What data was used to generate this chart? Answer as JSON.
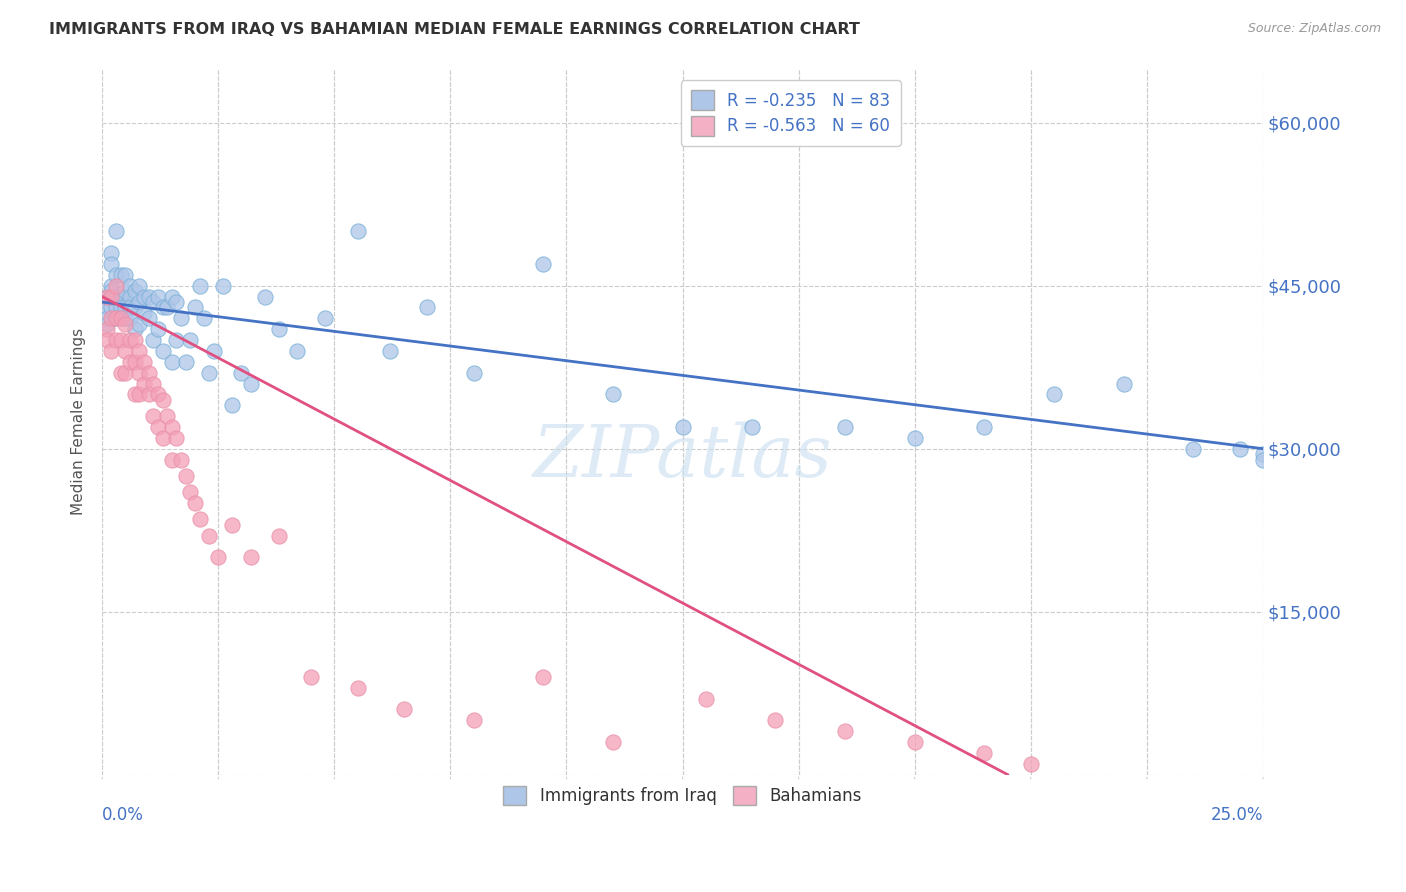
{
  "title": "IMMIGRANTS FROM IRAQ VS BAHAMIAN MEDIAN FEMALE EARNINGS CORRELATION CHART",
  "source": "Source: ZipAtlas.com",
  "ylabel": "Median Female Earnings",
  "y_ticks": [
    0,
    15000,
    30000,
    45000,
    60000
  ],
  "y_tick_labels": [
    "",
    "$15,000",
    "$30,000",
    "$45,000",
    "$60,000"
  ],
  "x_min": 0.0,
  "x_max": 0.25,
  "y_min": 0,
  "y_max": 65000,
  "legend_entries": [
    {
      "label": "Immigrants from Iraq",
      "color": "#aec6e8",
      "R": "-0.235",
      "N": "83"
    },
    {
      "label": "Bahamians",
      "color": "#f4b0c4",
      "R": "-0.563",
      "N": "60"
    }
  ],
  "blue_scatter_x": [
    0.001,
    0.001,
    0.001,
    0.001,
    0.002,
    0.002,
    0.002,
    0.002,
    0.002,
    0.003,
    0.003,
    0.003,
    0.003,
    0.003,
    0.004,
    0.004,
    0.004,
    0.004,
    0.005,
    0.005,
    0.005,
    0.005,
    0.006,
    0.006,
    0.006,
    0.006,
    0.007,
    0.007,
    0.007,
    0.008,
    0.008,
    0.008,
    0.009,
    0.009,
    0.01,
    0.01,
    0.011,
    0.011,
    0.012,
    0.012,
    0.013,
    0.013,
    0.014,
    0.015,
    0.015,
    0.016,
    0.016,
    0.017,
    0.018,
    0.019,
    0.02,
    0.021,
    0.022,
    0.023,
    0.024,
    0.026,
    0.028,
    0.03,
    0.032,
    0.035,
    0.038,
    0.042,
    0.048,
    0.055,
    0.062,
    0.07,
    0.08,
    0.095,
    0.11,
    0.125,
    0.14,
    0.16,
    0.175,
    0.19,
    0.205,
    0.22,
    0.235,
    0.245,
    0.25,
    0.25
  ],
  "blue_scatter_y": [
    43000,
    44000,
    42000,
    41500,
    48000,
    47000,
    45000,
    43000,
    44500,
    46000,
    50000,
    44000,
    43000,
    42000,
    46000,
    44000,
    43000,
    42000,
    46000,
    44500,
    43000,
    42000,
    45000,
    44000,
    43000,
    42000,
    44500,
    43000,
    41000,
    45000,
    43500,
    41500,
    44000,
    42500,
    44000,
    42000,
    43500,
    40000,
    44000,
    41000,
    43000,
    39000,
    43000,
    44000,
    38000,
    43500,
    40000,
    42000,
    38000,
    40000,
    43000,
    45000,
    42000,
    37000,
    39000,
    45000,
    34000,
    37000,
    36000,
    44000,
    41000,
    39000,
    42000,
    50000,
    39000,
    43000,
    37000,
    47000,
    35000,
    32000,
    32000,
    32000,
    31000,
    32000,
    35000,
    36000,
    30000,
    30000,
    29500,
    29000
  ],
  "pink_scatter_x": [
    0.001,
    0.001,
    0.001,
    0.002,
    0.002,
    0.002,
    0.003,
    0.003,
    0.003,
    0.004,
    0.004,
    0.004,
    0.005,
    0.005,
    0.005,
    0.006,
    0.006,
    0.007,
    0.007,
    0.007,
    0.008,
    0.008,
    0.008,
    0.009,
    0.009,
    0.01,
    0.01,
    0.011,
    0.011,
    0.012,
    0.012,
    0.013,
    0.013,
    0.014,
    0.015,
    0.015,
    0.016,
    0.017,
    0.018,
    0.019,
    0.02,
    0.021,
    0.023,
    0.025,
    0.028,
    0.032,
    0.038,
    0.045,
    0.055,
    0.065,
    0.08,
    0.095,
    0.11,
    0.13,
    0.145,
    0.16,
    0.175,
    0.19,
    0.2
  ],
  "pink_scatter_y": [
    44000,
    41000,
    40000,
    44000,
    42000,
    39000,
    45000,
    42000,
    40000,
    42000,
    40000,
    37000,
    41500,
    39000,
    37000,
    40000,
    38000,
    40000,
    38000,
    35000,
    39000,
    37000,
    35000,
    38000,
    36000,
    37000,
    35000,
    36000,
    33000,
    35000,
    32000,
    34500,
    31000,
    33000,
    32000,
    29000,
    31000,
    29000,
    27500,
    26000,
    25000,
    23500,
    22000,
    20000,
    23000,
    20000,
    22000,
    9000,
    8000,
    6000,
    5000,
    9000,
    3000,
    7000,
    5000,
    4000,
    3000,
    2000,
    1000
  ],
  "blue_line_x": [
    0.0,
    0.25
  ],
  "blue_line_y": [
    43500,
    30000
  ],
  "pink_line_x": [
    0.0,
    0.195
  ],
  "pink_line_y": [
    44000,
    0
  ],
  "blue_line_color": "#4472c4",
  "pink_line_color": "#e05080",
  "blue_dot_color": "#aec6e8",
  "pink_dot_color": "#f4a0b8",
  "blue_dot_edge": "#7ab0d8",
  "pink_dot_edge": "#e890a8",
  "grid_color": "#cccccc",
  "tick_label_color": "#4472c4",
  "watermark_color": "#c8dff0",
  "background_color": "#ffffff"
}
